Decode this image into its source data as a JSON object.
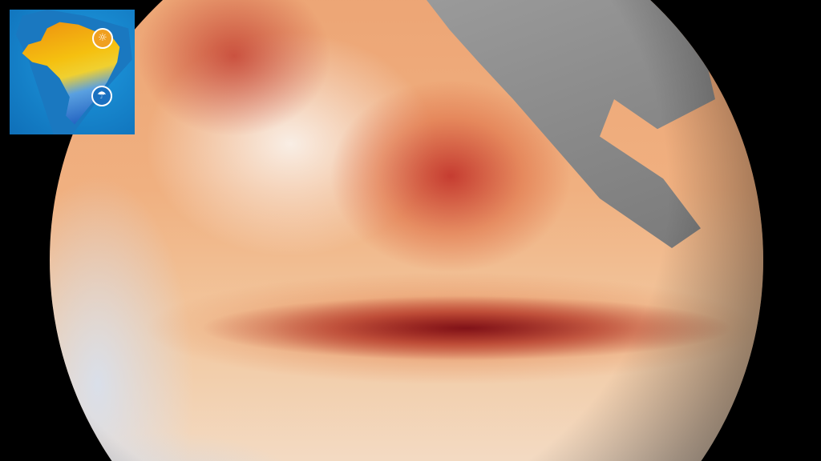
{
  "image": {
    "subject": "sea-surface-temperature-globe",
    "colors": {
      "warm_anomaly": "#b0202a",
      "cool_anomaly": "#c8d6ea",
      "land": "#8a8a8a",
      "background": "#000000"
    }
  },
  "inset": {
    "colors": {
      "ocean": "#1a8fd8",
      "dry": "#f0b010",
      "wet": "#2060c0"
    },
    "icons": [
      "sun-icon",
      "rain-cloud-icon"
    ],
    "sun_glyph": "☼",
    "rain_glyph": "☂"
  }
}
